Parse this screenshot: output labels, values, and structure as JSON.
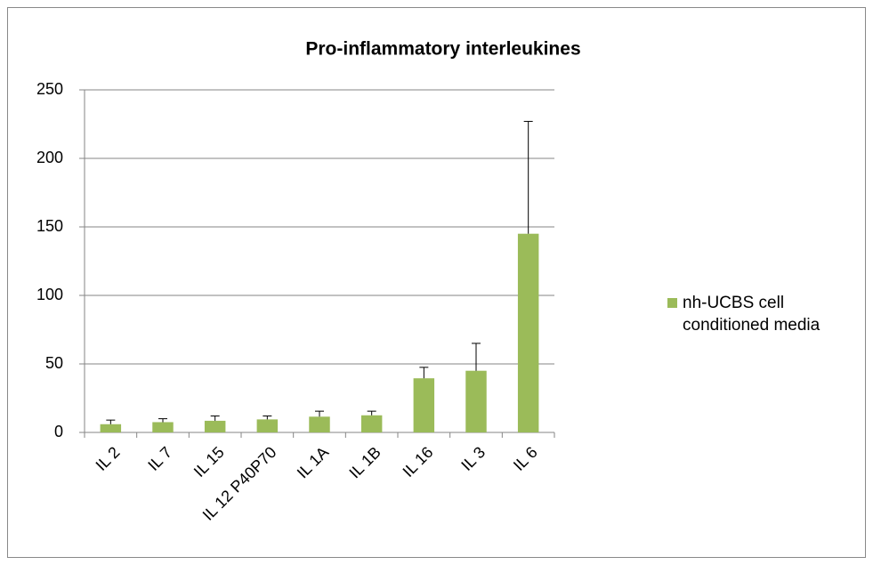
{
  "chart_data": {
    "type": "bar",
    "title": "Pro-inflammatory interleukines",
    "categories": [
      "IL 2",
      "IL 7",
      "IL 15",
      "IL 12 P40P70",
      "IL 1A",
      "IL 1B",
      "IL 16",
      "IL 3",
      "IL 6"
    ],
    "series": [
      {
        "name": "nh-UCBS cell conditioned media",
        "color": "#9bbb59",
        "values": [
          6,
          7.5,
          8.5,
          9.5,
          11.5,
          12.5,
          39.5,
          45,
          145
        ],
        "errors": [
          3,
          2.5,
          3.5,
          2.5,
          4,
          3,
          8,
          20,
          82
        ]
      }
    ],
    "ylim": [
      0,
      250
    ],
    "yticks": [
      0,
      50,
      100,
      150,
      200,
      250
    ],
    "grid": true,
    "legend": "right"
  }
}
